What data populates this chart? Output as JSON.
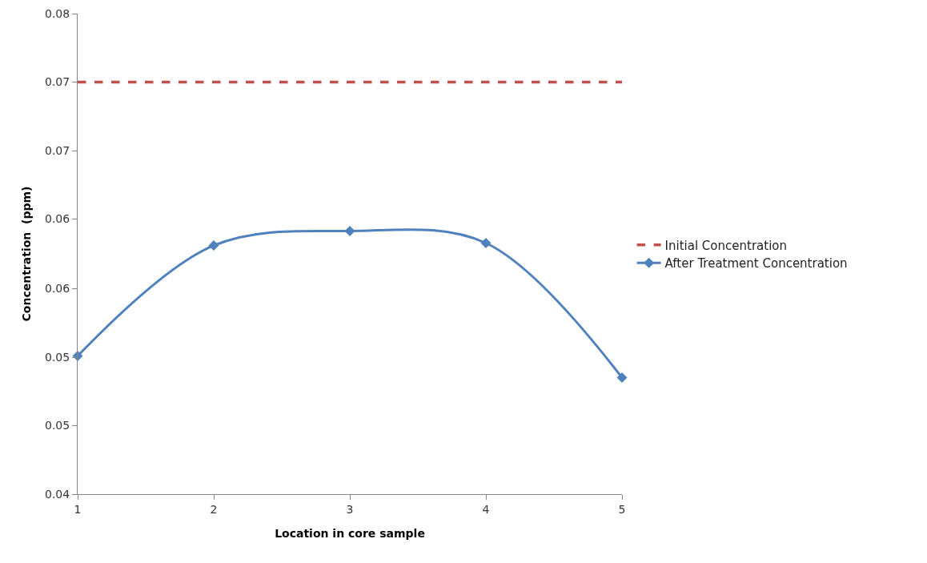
{
  "chart_data": {
    "type": "line",
    "xlabel": "Location in core sample",
    "ylabel": "Concentration  (ppm)",
    "x": [
      1,
      2,
      3,
      4,
      5
    ],
    "series": [
      {
        "name": "Initial Concentration",
        "color": "#c0504d",
        "values": [
          0.0743,
          0.0743,
          0.0743,
          0.0743,
          0.0743
        ],
        "line_style": "dashed",
        "marker": "none"
      },
      {
        "name": "After Treatment Concentration",
        "color": "#4f81bd",
        "values": [
          0.0515,
          0.0607,
          0.0619,
          0.0609,
          0.0497
        ],
        "line_style": "solid",
        "marker": "diamond"
      }
    ],
    "xlim": [
      1,
      5
    ],
    "xticks": [
      1,
      2,
      3,
      4,
      5
    ],
    "ylim": [
      0.04,
      0.08
    ],
    "yticks": [
      {
        "value": 0.04,
        "label": "0.04"
      },
      {
        "value": 0.0457,
        "label": "0.05"
      },
      {
        "value": 0.0514,
        "label": "0.05"
      },
      {
        "value": 0.0571,
        "label": "0.06"
      },
      {
        "value": 0.0629,
        "label": "0.06"
      },
      {
        "value": 0.0686,
        "label": "0.07"
      },
      {
        "value": 0.0743,
        "label": "0.07"
      },
      {
        "value": 0.08,
        "label": "0.08"
      }
    ],
    "grid": false,
    "legend": "right"
  }
}
